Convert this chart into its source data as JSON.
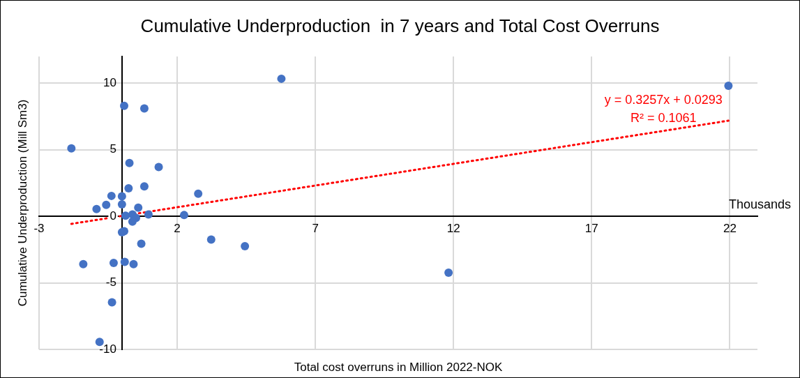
{
  "chart_data": {
    "type": "scatter",
    "title": "Cumulative Underproduction  in 7 years and Total Cost Overruns",
    "xlabel": "Total cost overruns in Million 2022-NOK",
    "ylabel": "Cumulative Underproduction (Mill Sm3)",
    "annotations": [
      "y = 0.3257x + 0.0293",
      "R² = 0.1061",
      "Thousands"
    ],
    "xlim": [
      -3,
      23
    ],
    "xticks": [
      -3,
      2,
      7,
      12,
      17,
      22
    ],
    "ylim": [
      -10,
      12
    ],
    "yticks": [
      -10,
      -5,
      0,
      5,
      10
    ],
    "grid": true,
    "legend": false,
    "marker": "circle",
    "series": [
      {
        "color": "#4472c4",
        "x": [
          0.08,
          0.81,
          -1.83,
          0.27,
          1.33,
          0.24,
          0.81,
          2.76,
          -0.38,
          0.0,
          0.0,
          -0.57,
          -0.92,
          0.59,
          0.13,
          0.38,
          0.96,
          0.51,
          0.38,
          2.25,
          0.08,
          0.0,
          0.7,
          3.23,
          -1.4,
          -0.3,
          0.1,
          0.42,
          -0.36,
          -0.81,
          5.77,
          4.45,
          11.82,
          21.95
        ],
        "values": [
          8.3,
          8.1,
          5.1,
          4.0,
          3.7,
          2.1,
          2.25,
          1.7,
          1.53,
          1.5,
          0.9,
          0.86,
          0.54,
          0.65,
          0.05,
          0.14,
          0.14,
          -0.13,
          -0.4,
          0.09,
          -1.12,
          -1.2,
          -2.07,
          -1.75,
          -3.6,
          -3.5,
          -3.43,
          -3.6,
          -6.47,
          -9.44,
          10.33,
          -2.25,
          -4.24,
          9.8
        ]
      },
      {
        "type": "line",
        "color": "#ff0000",
        "line_style": "dotted",
        "marker": "none",
        "x": [
          -1.83,
          21.95
        ],
        "values": [
          -0.57,
          7.18
        ]
      }
    ]
  }
}
